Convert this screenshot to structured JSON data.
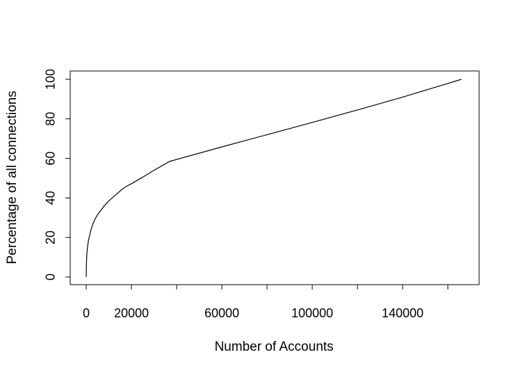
{
  "chart_data": {
    "type": "line",
    "title": "",
    "xlabel": "Number of Accounts",
    "ylabel": "Percentage of all connections",
    "xlim": [
      0,
      166000
    ],
    "ylim": [
      0,
      100
    ],
    "x_ticks": [
      0,
      20000,
      40000,
      60000,
      80000,
      100000,
      120000,
      140000,
      160000
    ],
    "x_tick_labels": [
      "0",
      "20000",
      "",
      "60000",
      "",
      "100000",
      "",
      "140000",
      ""
    ],
    "y_ticks": [
      0,
      20,
      40,
      60,
      80,
      100
    ],
    "y_tick_labels": [
      "0",
      "20",
      "40",
      "60",
      "80",
      "100"
    ],
    "grid": false,
    "legend": "none",
    "line_color": "#000000",
    "series": [
      {
        "x": [
          0,
          100,
          300,
          600,
          1000,
          1500,
          2000,
          3000,
          4000,
          5000,
          6000,
          7000,
          8000,
          10000,
          12000,
          14000,
          16000,
          18000,
          20000,
          25000,
          30000,
          37000,
          60000,
          80000,
          100000,
          120000,
          140000,
          166000
        ],
        "y": [
          0,
          7,
          12,
          15.5,
          18.5,
          21,
          23.5,
          27,
          29.5,
          31.5,
          33,
          34.5,
          36,
          38.5,
          40.5,
          42.5,
          44.5,
          46,
          47.2,
          50.5,
          54,
          58.5,
          65.8,
          72,
          78.2,
          84.5,
          91,
          100
        ]
      }
    ]
  }
}
